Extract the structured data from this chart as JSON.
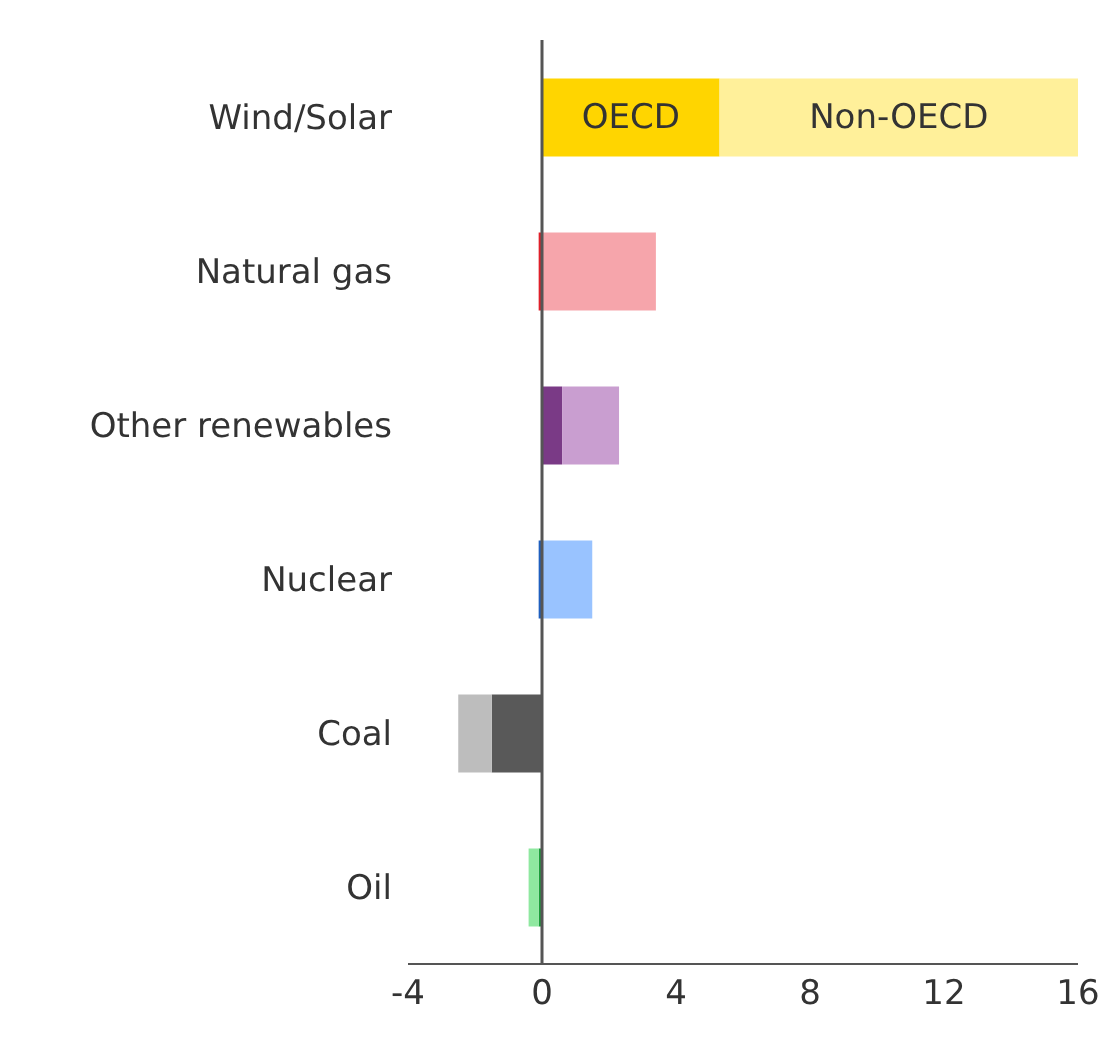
{
  "chart_data": {
    "type": "bar",
    "orientation": "horizontal",
    "stacked": true,
    "categories": [
      "Wind/Solar",
      "Natural gas",
      "Other renewables",
      "Nuclear",
      "Coal",
      "Oil"
    ],
    "series": [
      {
        "name": "OECD",
        "colors": [
          "#ffd500",
          "#e0202a",
          "#7a3a86",
          "#1f5fbf",
          "#595959",
          "#1a9e3a"
        ],
        "values": [
          5.3,
          -0.1,
          0.6,
          -0.1,
          -1.5,
          -0.1
        ]
      },
      {
        "name": "Non-OECD",
        "colors": [
          "#fff09a",
          "#f6a5ab",
          "#c99ed0",
          "#99c3ff",
          "#bdbdbd",
          "#8fe8a0"
        ],
        "values": [
          10.7,
          3.4,
          1.7,
          1.5,
          -1.0,
          -0.3
        ]
      }
    ],
    "xlim": [
      -4,
      16
    ],
    "xticks": [
      -4,
      0,
      4,
      8,
      12,
      16
    ],
    "ref_lines": [
      {
        "axis": "x",
        "value": 0,
        "color": "#555555"
      }
    ],
    "grid": false
  }
}
